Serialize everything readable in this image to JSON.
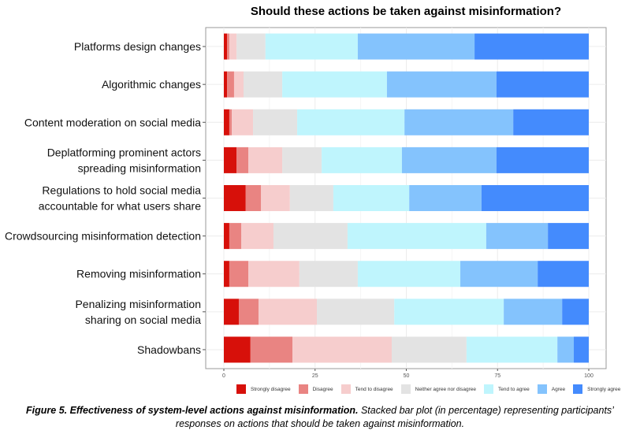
{
  "chart_data": {
    "type": "bar",
    "orientation": "horizontal",
    "stacked": true,
    "title": "Should these actions be taken against misinformation?",
    "xlabel": "",
    "ylabel": "",
    "xlim": [
      0,
      100
    ],
    "xticks": [
      0,
      25,
      50,
      75,
      100
    ],
    "xtick_labels": [
      "0",
      "25",
      "50",
      "75",
      "100"
    ],
    "grid": true,
    "legend_position": "bottom",
    "categories": [
      [
        "Platforms design changes"
      ],
      [
        "Algorithmic changes"
      ],
      [
        "Content moderation on social media"
      ],
      [
        "Deplatforming prominent actors",
        "spreading misinformation"
      ],
      [
        "Regulations to hold social media",
        "accountable for what users share"
      ],
      [
        "Crowdsourcing misinformation detection"
      ],
      [
        "Removing misinformation"
      ],
      [
        "Penalizing misinformation",
        "sharing on social media"
      ],
      [
        "Shadowbans"
      ]
    ],
    "series": [
      {
        "name": "Strongly disagree",
        "color": "#d7100a",
        "values": [
          0.9,
          0.9,
          1.5,
          3.5,
          6.0,
          1.5,
          1.5,
          4.1,
          7.3
        ]
      },
      {
        "name": "Disagree",
        "color": "#e98482",
        "values": [
          0.6,
          1.9,
          0.7,
          3.2,
          4.2,
          3.3,
          5.2,
          5.4,
          11.5
        ]
      },
      {
        "name": "Tend to disagree",
        "color": "#f6cdcd",
        "values": [
          2.0,
          2.6,
          5.8,
          9.3,
          7.9,
          8.8,
          14.0,
          16.0,
          27.2
        ]
      },
      {
        "name": "Neither agree nor disagree",
        "color": "#e3e3e3",
        "values": [
          7.9,
          10.6,
          12.1,
          10.8,
          11.9,
          20.3,
          16.0,
          21.2,
          20.5
        ]
      },
      {
        "name": "Tend to agree",
        "color": "#bff5fd",
        "values": [
          25.3,
          28.7,
          29.4,
          22.0,
          20.8,
          38.0,
          28.1,
          30.0,
          24.9
        ]
      },
      {
        "name": "Agree",
        "color": "#84c3fd",
        "values": [
          32.0,
          30.0,
          29.8,
          25.9,
          19.8,
          16.9,
          21.2,
          16.0,
          4.5
        ]
      },
      {
        "name": "Strongly agree",
        "color": "#448bfd",
        "values": [
          31.3,
          25.3,
          20.7,
          25.3,
          29.4,
          11.2,
          14.0,
          7.3,
          4.1
        ]
      }
    ]
  },
  "caption": {
    "bold": "Figure 5. Effectiveness of system-level actions against misinformation.",
    "text": " Stacked bar plot (in percentage) representing participants’ responses on actions that should be taken against misinformation."
  }
}
